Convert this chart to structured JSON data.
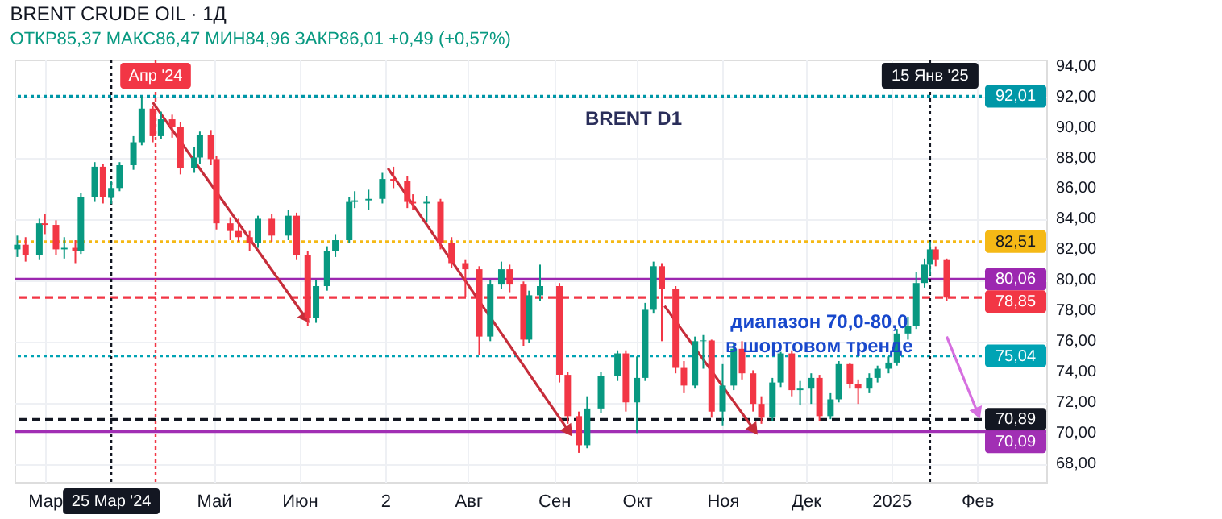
{
  "chart_data": {
    "type": "candlestick",
    "title": "BRENT CRUDE OIL · 1Д",
    "subtitle": "ОТКР85,37 МАКС86,47 МИН84,96 ЗАКР86,01 +0,49 (+0,57%)",
    "x": [
      "2024-02-20",
      "2024-02-23",
      "2024-02-28",
      "2024-03-01",
      "2024-03-05",
      "2024-03-08",
      "2024-03-12",
      "2024-03-14",
      "2024-03-19",
      "2024-03-22",
      "2024-03-25",
      "2024-03-28",
      "2024-04-02",
      "2024-04-05",
      "2024-04-09",
      "2024-04-12",
      "2024-04-16",
      "2024-04-19",
      "2024-04-24",
      "2024-04-26",
      "2024-04-30",
      "2024-05-02",
      "2024-05-07",
      "2024-05-10",
      "2024-05-14",
      "2024-05-17",
      "2024-05-22",
      "2024-05-28",
      "2024-05-31",
      "2024-06-04",
      "2024-06-07",
      "2024-06-11",
      "2024-06-14",
      "2024-06-19",
      "2024-06-21",
      "2024-06-26",
      "2024-07-01",
      "2024-07-05",
      "2024-07-10",
      "2024-07-12",
      "2024-07-17",
      "2024-07-22",
      "2024-07-26",
      "2024-07-31",
      "2024-08-05",
      "2024-08-09",
      "2024-08-13",
      "2024-08-16",
      "2024-08-21",
      "2024-08-23",
      "2024-08-27",
      "2024-09-03",
      "2024-09-06",
      "2024-09-10",
      "2024-09-13",
      "2024-09-18",
      "2024-09-24",
      "2024-09-27",
      "2024-10-01",
      "2024-10-04",
      "2024-10-07",
      "2024-10-10",
      "2024-10-15",
      "2024-10-18",
      "2024-10-22",
      "2024-10-25",
      "2024-10-28",
      "2024-11-01",
      "2024-11-05",
      "2024-11-08",
      "2024-11-12",
      "2024-11-15",
      "2024-11-19",
      "2024-11-22",
      "2024-11-26",
      "2024-11-29",
      "2024-12-03",
      "2024-12-06",
      "2024-12-10",
      "2024-12-13",
      "2024-12-17",
      "2024-12-20",
      "2024-12-24",
      "2024-12-27",
      "2024-12-31",
      "2025-01-03",
      "2025-01-07",
      "2025-01-10",
      "2025-01-13",
      "2025-01-15",
      "2025-01-17",
      "2025-01-21"
    ],
    "ohlc": [
      [
        82.0,
        82.9,
        81.5,
        82.3
      ],
      [
        82.3,
        82.8,
        81.2,
        81.6
      ],
      [
        81.6,
        84.0,
        81.3,
        83.7
      ],
      [
        83.7,
        84.3,
        83.0,
        83.6
      ],
      [
        83.6,
        83.9,
        81.6,
        82.0
      ],
      [
        82.0,
        82.8,
        81.4,
        82.1
      ],
      [
        82.1,
        82.6,
        81.1,
        81.9
      ],
      [
        81.9,
        85.7,
        81.7,
        85.4
      ],
      [
        85.4,
        87.7,
        85.1,
        87.4
      ],
      [
        87.4,
        87.6,
        85.0,
        85.4
      ],
      [
        85.37,
        86.47,
        84.96,
        86.01
      ],
      [
        86.01,
        87.7,
        85.8,
        87.5
      ],
      [
        87.5,
        89.4,
        87.2,
        89.0
      ],
      [
        89.0,
        92.0,
        88.8,
        91.2
      ],
      [
        91.2,
        91.4,
        89.0,
        89.4
      ],
      [
        89.4,
        91.0,
        89.2,
        90.5
      ],
      [
        90.5,
        90.8,
        89.3,
        90.0
      ],
      [
        90.0,
        90.3,
        86.9,
        87.3
      ],
      [
        87.3,
        88.7,
        87.0,
        88.0
      ],
      [
        88.0,
        89.7,
        87.6,
        89.5
      ],
      [
        89.5,
        89.8,
        87.5,
        87.9
      ],
      [
        87.9,
        88.1,
        83.3,
        83.7
      ],
      [
        83.7,
        84.1,
        82.6,
        83.2
      ],
      [
        83.2,
        84.0,
        82.5,
        82.8
      ],
      [
        82.8,
        83.2,
        81.9,
        82.4
      ],
      [
        82.4,
        84.2,
        82.1,
        84.0
      ],
      [
        84.0,
        84.3,
        82.5,
        82.9
      ],
      [
        82.9,
        84.6,
        82.6,
        84.2
      ],
      [
        84.2,
        84.4,
        81.3,
        81.6
      ],
      [
        81.6,
        81.9,
        77.0,
        77.5
      ],
      [
        77.5,
        80.0,
        77.2,
        79.6
      ],
      [
        79.6,
        82.2,
        79.3,
        81.9
      ],
      [
        81.9,
        83.0,
        81.5,
        82.6
      ],
      [
        82.6,
        85.4,
        82.4,
        85.1
      ],
      [
        85.1,
        85.8,
        84.7,
        85.2
      ],
      [
        85.2,
        85.9,
        84.6,
        85.3
      ],
      [
        85.3,
        87.0,
        85.0,
        86.6
      ],
      [
        86.6,
        87.4,
        86.0,
        86.5
      ],
      [
        86.5,
        86.8,
        84.7,
        85.1
      ],
      [
        85.1,
        85.6,
        84.6,
        85.0
      ],
      [
        85.0,
        85.5,
        83.8,
        85.1
      ],
      [
        85.1,
        85.3,
        82.0,
        82.4
      ],
      [
        82.4,
        82.8,
        80.8,
        81.1
      ],
      [
        81.1,
        81.3,
        78.9,
        80.7
      ],
      [
        80.7,
        80.9,
        75.1,
        76.3
      ],
      [
        76.3,
        80.0,
        76.0,
        79.7
      ],
      [
        79.7,
        81.2,
        79.4,
        80.7
      ],
      [
        80.7,
        81.0,
        79.2,
        79.7
      ],
      [
        79.7,
        79.9,
        75.7,
        76.1
      ],
      [
        76.1,
        79.3,
        75.9,
        79.0
      ],
      [
        79.0,
        81.0,
        78.6,
        79.6
      ],
      [
        79.6,
        79.8,
        73.3,
        73.8
      ],
      [
        73.8,
        74.0,
        70.6,
        71.1
      ],
      [
        71.1,
        71.4,
        68.7,
        69.2
      ],
      [
        69.2,
        72.4,
        69.0,
        71.6
      ],
      [
        71.6,
        74.0,
        71.3,
        73.7
      ],
      [
        73.7,
        75.4,
        73.4,
        75.2
      ],
      [
        75.2,
        75.4,
        71.4,
        72.0
      ],
      [
        72.0,
        75.0,
        70.0,
        73.6
      ],
      [
        73.6,
        78.5,
        73.4,
        78.05
      ],
      [
        78.05,
        81.2,
        77.8,
        80.9
      ],
      [
        80.9,
        81.1,
        76.0,
        79.4
      ],
      [
        79.4,
        79.6,
        73.9,
        74.25
      ],
      [
        74.25,
        74.7,
        72.6,
        73.1
      ],
      [
        73.1,
        76.3,
        72.9,
        76.0
      ],
      [
        76.0,
        76.4,
        74.2,
        76.05
      ],
      [
        76.05,
        76.1,
        71.0,
        71.4
      ],
      [
        71.4,
        74.5,
        70.5,
        73.1
      ],
      [
        73.1,
        75.9,
        72.8,
        75.5
      ],
      [
        75.5,
        76.0,
        73.5,
        73.9
      ],
      [
        73.9,
        74.1,
        71.4,
        71.9
      ],
      [
        71.9,
        72.4,
        70.6,
        71.0
      ],
      [
        71.0,
        73.6,
        70.8,
        73.3
      ],
      [
        73.3,
        75.3,
        73.0,
        75.2
      ],
      [
        75.2,
        75.4,
        72.4,
        72.8
      ],
      [
        72.8,
        73.4,
        71.8,
        72.9
      ],
      [
        72.9,
        73.9,
        71.9,
        73.6
      ],
      [
        73.6,
        73.8,
        70.8,
        71.1
      ],
      [
        71.1,
        72.6,
        70.9,
        72.2
      ],
      [
        72.2,
        74.7,
        72.0,
        74.5
      ],
      [
        74.5,
        74.6,
        72.9,
        73.2
      ],
      [
        73.2,
        73.5,
        71.9,
        72.9
      ],
      [
        72.9,
        73.9,
        72.6,
        73.6
      ],
      [
        73.6,
        74.4,
        73.3,
        74.2
      ],
      [
        74.2,
        75.0,
        73.9,
        74.6
      ],
      [
        74.6,
        76.8,
        74.4,
        76.5
      ],
      [
        76.5,
        77.6,
        76.1,
        77.0
      ],
      [
        77.0,
        80.5,
        76.8,
        79.8
      ],
      [
        79.8,
        81.4,
        79.5,
        81.0
      ],
      [
        81.0,
        82.51,
        80.3,
        82.0
      ],
      [
        82.0,
        82.2,
        80.9,
        81.3
      ],
      [
        81.3,
        81.4,
        78.6,
        78.85
      ]
    ],
    "colors": [
      "#089981",
      "#f23645",
      "#089981",
      "#f23645",
      "#f23645",
      "#089981",
      "#f23645",
      "#089981",
      "#089981",
      "#f23645",
      "#089981",
      "#089981",
      "#089981",
      "#089981",
      "#f23645",
      "#089981",
      "#f23645",
      "#f23645",
      "#089981",
      "#089981",
      "#f23645",
      "#f23645",
      "#f23645",
      "#f23645",
      "#f23645",
      "#089981",
      "#f23645",
      "#089981",
      "#f23645",
      "#f23645",
      "#089981",
      "#089981",
      "#089981",
      "#089981",
      "#089981",
      "#089981",
      "#089981",
      "#f23645",
      "#f23645",
      "#f23645",
      "#089981",
      "#f23645",
      "#f23645",
      "#f23645",
      "#f23645",
      "#089981",
      "#089981",
      "#f23645",
      "#f23645",
      "#089981",
      "#089981",
      "#f23645",
      "#f23645",
      "#f23645",
      "#089981",
      "#089981",
      "#089981",
      "#f23645",
      "#089981",
      "#089981",
      "#089981",
      "#f23645",
      "#f23645",
      "#f23645",
      "#089981",
      "#089981",
      "#f23645",
      "#089981",
      "#089981",
      "#f23645",
      "#f23645",
      "#f23645",
      "#089981",
      "#089981",
      "#f23645",
      "#089981",
      "#089981",
      "#f23645",
      "#089981",
      "#089981",
      "#f23645",
      "#f23645",
      "#089981",
      "#089981",
      "#089981",
      "#089981",
      "#089981",
      "#089981",
      "#089981",
      "#089981",
      "#f23645",
      "#f23645"
    ],
    "xlim": [
      "2024-02-19",
      "2025-02-26"
    ],
    "xticks": [
      {
        "value": "2024-03-01",
        "label": "Мар"
      },
      {
        "value": "2024-05-01",
        "label": "Май"
      },
      {
        "value": "2024-06-01",
        "label": "Июн"
      },
      {
        "value": "2024-07-02",
        "label": "2"
      },
      {
        "value": "2024-08-01",
        "label": "Авг"
      },
      {
        "value": "2024-09-01",
        "label": "Сен"
      },
      {
        "value": "2024-10-01",
        "label": "Окт"
      },
      {
        "value": "2024-11-01",
        "label": "Ноя"
      },
      {
        "value": "2024-12-01",
        "label": "Дек"
      },
      {
        "value": "2025-01-01",
        "label": "2025"
      },
      {
        "value": "2025-02-01",
        "label": "Фев"
      }
    ],
    "ylim": [
      66.8,
      94.4
    ],
    "yticks": [
      {
        "value": 68,
        "label": "68,00"
      },
      {
        "value": 70,
        "label": "70,00"
      },
      {
        "value": 72,
        "label": "72,00"
      },
      {
        "value": 74,
        "label": "74,00"
      },
      {
        "value": 76,
        "label": "76,00"
      },
      {
        "value": 78,
        "label": "78,00"
      },
      {
        "value": 80,
        "label": "80,00"
      },
      {
        "value": 82,
        "label": "82,00"
      },
      {
        "value": 84,
        "label": "84,00"
      },
      {
        "value": 86,
        "label": "86,00"
      },
      {
        "value": 88,
        "label": "88,00"
      },
      {
        "value": 90,
        "label": "90,00"
      },
      {
        "value": 92,
        "label": "92,00"
      },
      {
        "value": 94,
        "label": "94,00"
      }
    ],
    "grid": true,
    "ref_lines": [
      {
        "axis": "y",
        "value": 92.01,
        "label": "92,01",
        "color": "#0097a7",
        "line_style": "dotted"
      },
      {
        "axis": "y",
        "value": 82.51,
        "label": "82,51",
        "color": "#f5b916",
        "line_style": "dotted"
      },
      {
        "axis": "y",
        "value": 80.06,
        "label": "80,06",
        "color": "#9c27b0",
        "line_style": "solid"
      },
      {
        "axis": "y",
        "value": 78.85,
        "label": "78,85",
        "color": "#f23645",
        "line_style": "dashed"
      },
      {
        "axis": "y",
        "value": 75.04,
        "label": "75,04",
        "color": "#00a3b4",
        "line_style": "dotted"
      },
      {
        "axis": "y",
        "value": 70.89,
        "label": "70,89",
        "color": "#131722",
        "line_style": "dashed"
      },
      {
        "axis": "y",
        "value": 70.09,
        "label": "70,09",
        "color": "#a12fb4",
        "line_style": "solid"
      },
      {
        "axis": "x",
        "value": "2024-03-25",
        "label": "25 Мар '24",
        "color": "#131722",
        "line_style": "dotted"
      },
      {
        "axis": "x",
        "value": "2024-04-10",
        "label": "Апр '24",
        "color": "#f23645",
        "line_style": "dotted"
      },
      {
        "axis": "x",
        "value": "2025-01-15",
        "label": "15 Янв '25",
        "color": "#131722",
        "line_style": "dotted"
      }
    ],
    "annotations": [
      "BRENT D1",
      "диапазон 70,0-80,0\nв шортовом тренде"
    ]
  }
}
